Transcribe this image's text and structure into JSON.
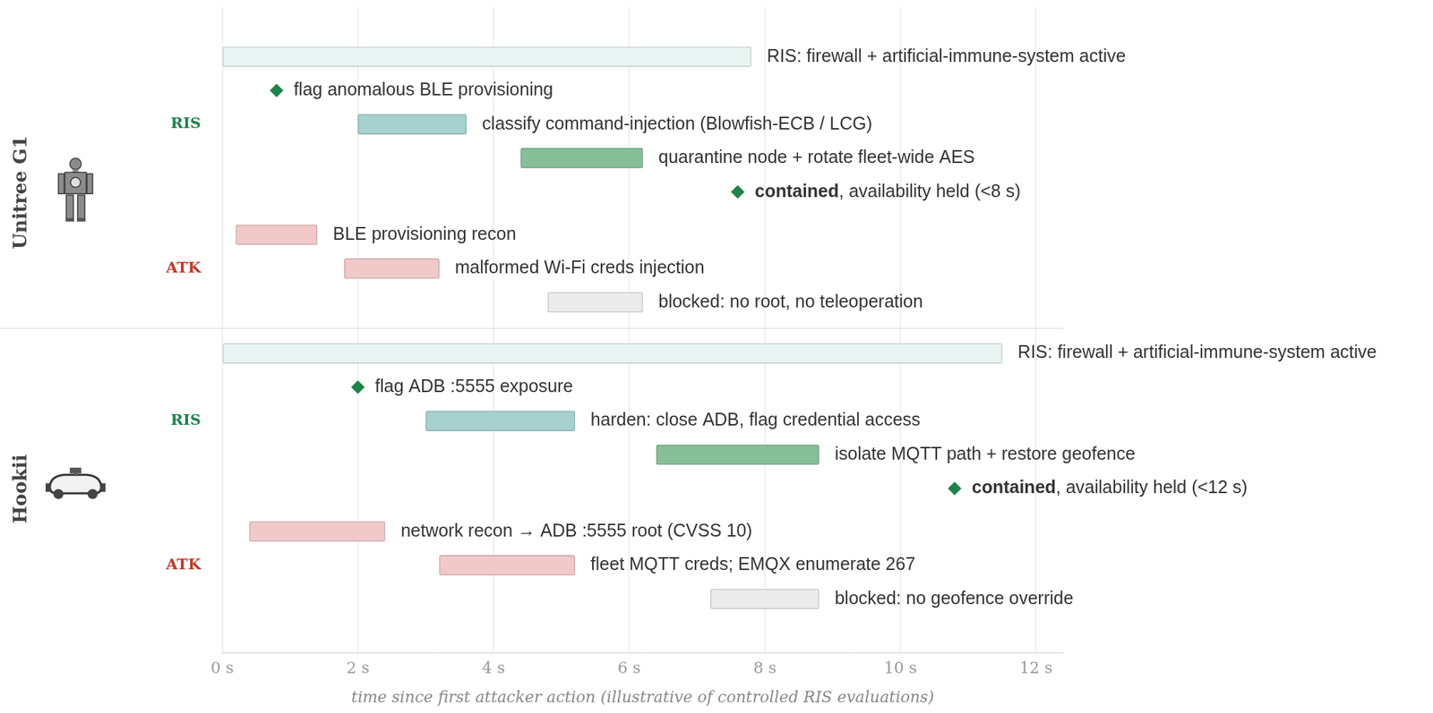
{
  "chart_data": {
    "type": "timeline",
    "x_label": "time since first attacker action (illustrative of controlled RIS evaluations)",
    "xlim": [
      0,
      12.4
    ],
    "xticks": [
      {
        "value": 0,
        "label": "0 s"
      },
      {
        "value": 2,
        "label": "2 s"
      },
      {
        "value": 4,
        "label": "4 s"
      },
      {
        "value": 6,
        "label": "6 s"
      },
      {
        "value": 8,
        "label": "8 s"
      },
      {
        "value": 10,
        "label": "10 s"
      },
      {
        "value": 12,
        "label": "12 s"
      }
    ],
    "grid": true,
    "panels": [
      {
        "name": "Unitree G1",
        "groups": [
          {
            "name": "RIS",
            "color": "#1e8449",
            "rows": [
              {
                "label": "RIS: firewall + artificial-immune-system active",
                "start": 0,
                "end": 7.8,
                "color": "#e8f4f2"
              },
              {
                "label": "flag anomalous BLE provisioning",
                "at": 0.8,
                "marker": "diamond",
                "color": "#1e8449"
              },
              {
                "label": "classify command-injection (Blowfish-ECB / LCG)",
                "start": 2.0,
                "end": 3.6,
                "color": "#a6d1cf"
              },
              {
                "label": "quarantine node + rotate fleet-wide AES",
                "start": 4.4,
                "end": 6.2,
                "color": "#86bf98"
              },
              {
                "label": "contained, availability held (<8 s)",
                "emphasis": "contained",
                "at": 7.6,
                "marker": "diamond",
                "color": "#1e8449"
              }
            ]
          },
          {
            "name": "ATK",
            "color": "#c0392b",
            "rows": [
              {
                "label": "BLE provisioning recon",
                "start": 0.2,
                "end": 1.4,
                "color": "#f1c9c9"
              },
              {
                "label": "malformed Wi-Fi creds injection",
                "start": 1.8,
                "end": 3.2,
                "color": "#f1c9c9"
              },
              {
                "label": "blocked: no root, no teleoperation",
                "start": 4.8,
                "end": 6.2,
                "color": "#ebebeb"
              }
            ]
          }
        ]
      },
      {
        "name": "Hookii",
        "groups": [
          {
            "name": "RIS",
            "color": "#1e8449",
            "rows": [
              {
                "label": "RIS: firewall + artificial-immune-system active",
                "start": 0,
                "end": 11.5,
                "color": "#e8f4f2"
              },
              {
                "label": "flag ADB :5555 exposure",
                "at": 2.0,
                "marker": "diamond",
                "color": "#1e8449"
              },
              {
                "label": "harden: close ADB, flag credential access",
                "start": 3.0,
                "end": 5.2,
                "color": "#a6d1cf"
              },
              {
                "label": "isolate MQTT path + restore geofence",
                "start": 6.4,
                "end": 8.8,
                "color": "#86bf98"
              },
              {
                "label": "contained, availability held (<12 s)",
                "emphasis": "contained",
                "at": 10.8,
                "marker": "diamond",
                "color": "#1e8449"
              }
            ]
          },
          {
            "name": "ATK",
            "color": "#c0392b",
            "rows": [
              {
                "label": "network recon → ADB :5555 root (CVSS 10)",
                "start": 0.4,
                "end": 2.4,
                "color": "#f1c9c9"
              },
              {
                "label": "fleet MQTT creds; EMQX enumerate 267",
                "start": 3.2,
                "end": 5.2,
                "color": "#f1c9c9"
              },
              {
                "label": "blocked: no geofence override",
                "start": 7.2,
                "end": 8.8,
                "color": "#ebebeb"
              }
            ]
          }
        ]
      }
    ]
  }
}
